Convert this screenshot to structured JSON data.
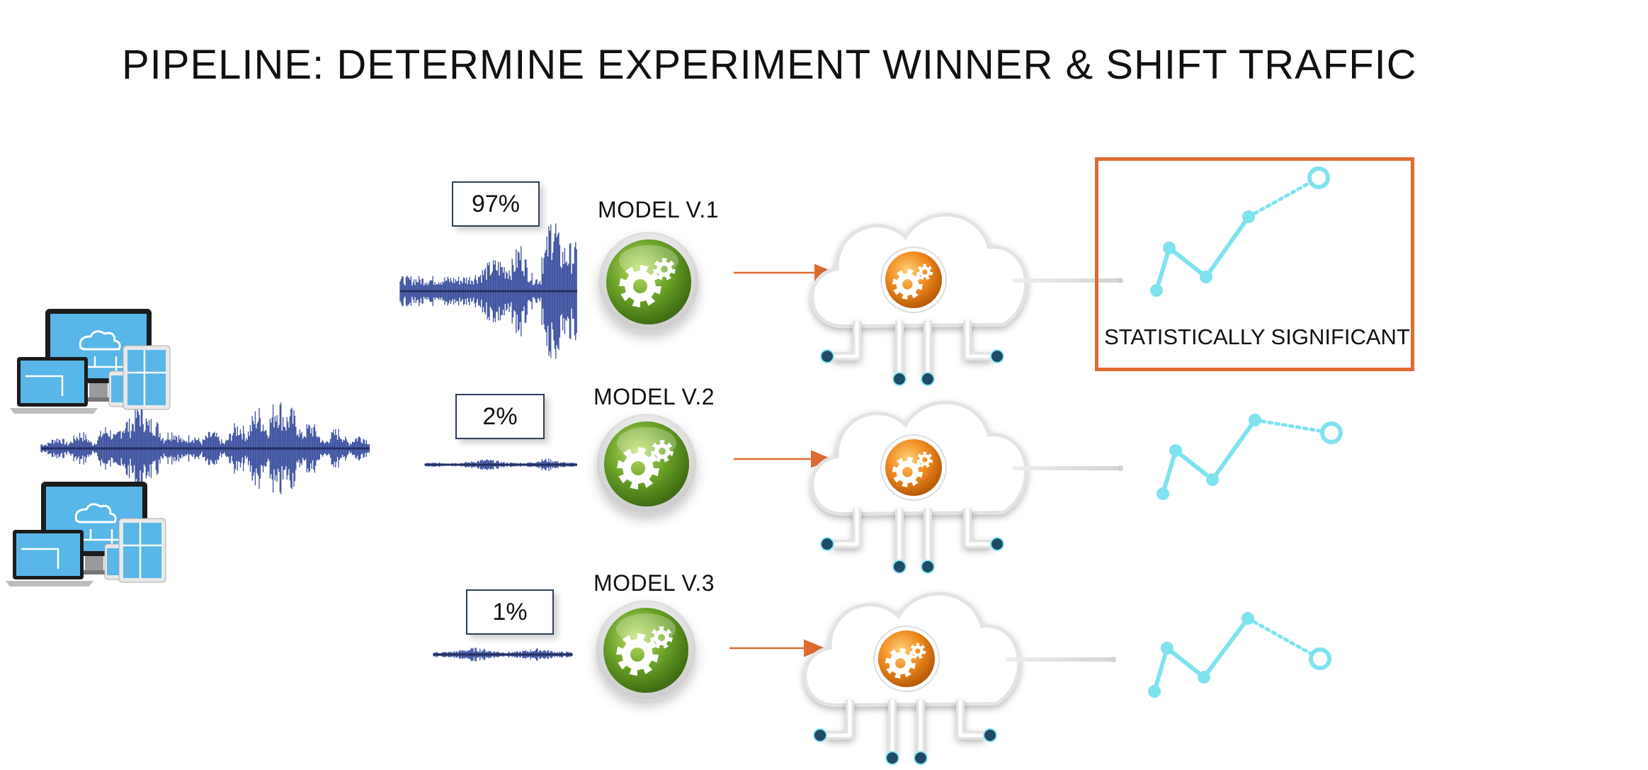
{
  "title": "PIPELINE: DETERMINE EXPERIMENT WINNER & SHIFT TRAFFIC",
  "models": [
    {
      "label": "MODEL V.1",
      "traffic": "97%",
      "traffic_value": 97
    },
    {
      "label": "MODEL V.2",
      "traffic": "2%",
      "traffic_value": 2
    },
    {
      "label": "MODEL V.3",
      "traffic": "1%",
      "traffic_value": 1
    }
  ],
  "winner": {
    "label": "STATISTICALLY SIGNIFICANT",
    "model_index": 0
  },
  "icons": {
    "devices": "devices-icon",
    "model": "gear-icon",
    "cloud": "cloud-circuit-icon",
    "trend": "trend-line-icon"
  },
  "colors": {
    "accent": "#e06a32",
    "waveform": "#3a4f9e",
    "gear_green": "#6aa128",
    "gear_orange": "#ef8a1e",
    "trend": "#7ee3ee",
    "cloud_node": "#1f4a66",
    "box_border": "#2d3f5c"
  }
}
